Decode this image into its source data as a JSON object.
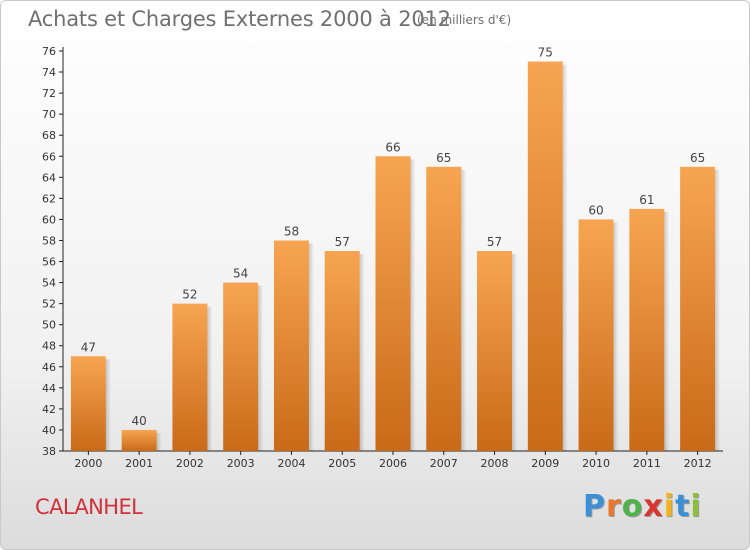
{
  "chart_data": {
    "type": "bar",
    "title": "Achats et Charges Externes 2000 à 2012",
    "subtitle": "(en milliers d'€)",
    "categories": [
      "2000",
      "2001",
      "2002",
      "2003",
      "2004",
      "2005",
      "2006",
      "2007",
      "2008",
      "2009",
      "2010",
      "2011",
      "2012"
    ],
    "values": [
      47,
      40,
      52,
      54,
      58,
      57,
      66,
      65,
      57,
      75,
      60,
      61,
      65
    ],
    "ylim": [
      38,
      76
    ],
    "yticks": [
      38,
      40,
      42,
      44,
      46,
      48,
      50,
      52,
      54,
      56,
      58,
      60,
      62,
      64,
      66,
      68,
      70,
      72,
      74,
      76
    ],
    "grid": false,
    "xlabel": "",
    "ylabel": "",
    "bar_color_top": "#f7a552",
    "bar_color_bottom": "#c96a18"
  },
  "town": "CALANHEL",
  "logo": {
    "letters": [
      "P",
      "r",
      "o",
      "x",
      "i",
      "t",
      "i"
    ],
    "colors": [
      "#3b8fd4",
      "#e8762c",
      "#4fb24a",
      "#d8362e",
      "#f2b21c",
      "#3b8fd4",
      "#8bbf3c"
    ]
  }
}
